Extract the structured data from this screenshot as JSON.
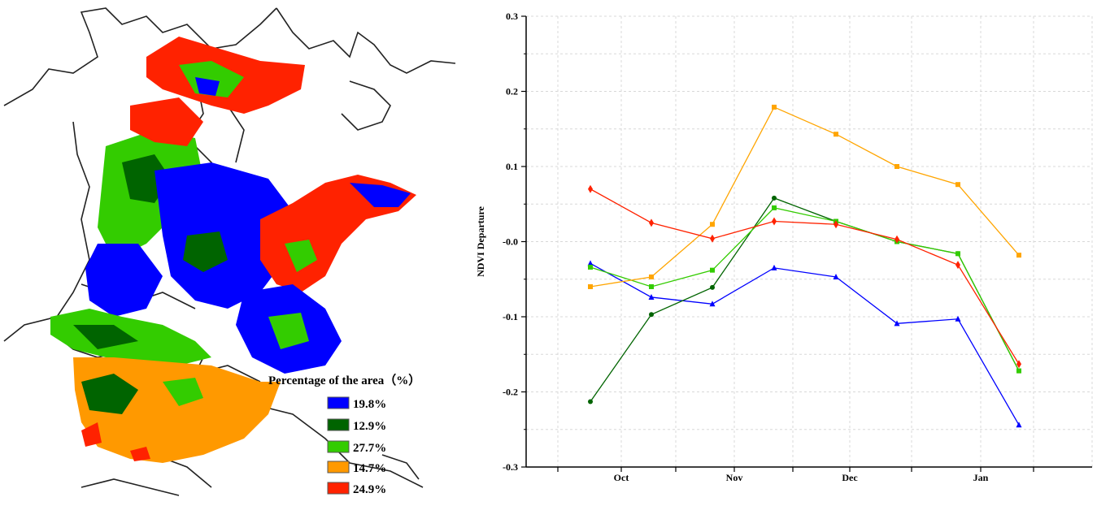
{
  "map": {
    "legend": {
      "title": "Percentage of the area（%）",
      "entries": [
        {
          "color": "#0000ff",
          "label": "19.8%"
        },
        {
          "color": "#006400",
          "label": "12.9%"
        },
        {
          "color": "#33cc00",
          "label": "27.7%"
        },
        {
          "color": "#ff9900",
          "label": "14.7%"
        },
        {
          "color": "#ff2200",
          "label": "24.9%"
        }
      ]
    }
  },
  "chart_data": {
    "type": "line",
    "title": "",
    "xlabel": "",
    "ylabel": "NDVI Departure",
    "ylim": [
      -0.3,
      0.3
    ],
    "yticks": [
      -0.3,
      -0.2,
      -0.1,
      0.0,
      0.1,
      0.2,
      0.3
    ],
    "ytick_labels": [
      "-0.3",
      "-0.2",
      "-0.1",
      "-0.0",
      "0.1",
      "0.2",
      "0.3"
    ],
    "x_tick_labels": [
      "Oct",
      "Nov",
      "Dec",
      "Jan"
    ],
    "x_points": [
      "Oct-1",
      "Oct-2",
      "Oct-3",
      "Nov-1",
      "Nov-2",
      "Nov-3",
      "Dec-1",
      "Jan-1"
    ],
    "grid": true,
    "series": [
      {
        "color": "#0000ff",
        "marker": "triangle",
        "values": [
          -0.029,
          -0.074,
          -0.083,
          -0.035,
          -0.047,
          -0.109,
          -0.103,
          -0.244
        ]
      },
      {
        "color": "#006400",
        "marker": "circle",
        "values": [
          -0.213,
          -0.097,
          -0.061,
          0.058,
          0.027,
          0.0,
          -0.016,
          -0.172
        ]
      },
      {
        "color": "#33cc00",
        "marker": "square",
        "values": [
          -0.034,
          -0.06,
          -0.038,
          0.045,
          0.027,
          0.0,
          -0.016,
          -0.172
        ]
      },
      {
        "color": "#ffa500",
        "marker": "square",
        "values": [
          -0.06,
          -0.047,
          0.023,
          0.179,
          0.143,
          0.1,
          0.076,
          -0.018
        ]
      },
      {
        "color": "#ff2200",
        "marker": "diamond",
        "values": [
          0.07,
          0.025,
          0.004,
          0.027,
          0.023,
          0.003,
          -0.031,
          -0.163
        ]
      }
    ]
  }
}
